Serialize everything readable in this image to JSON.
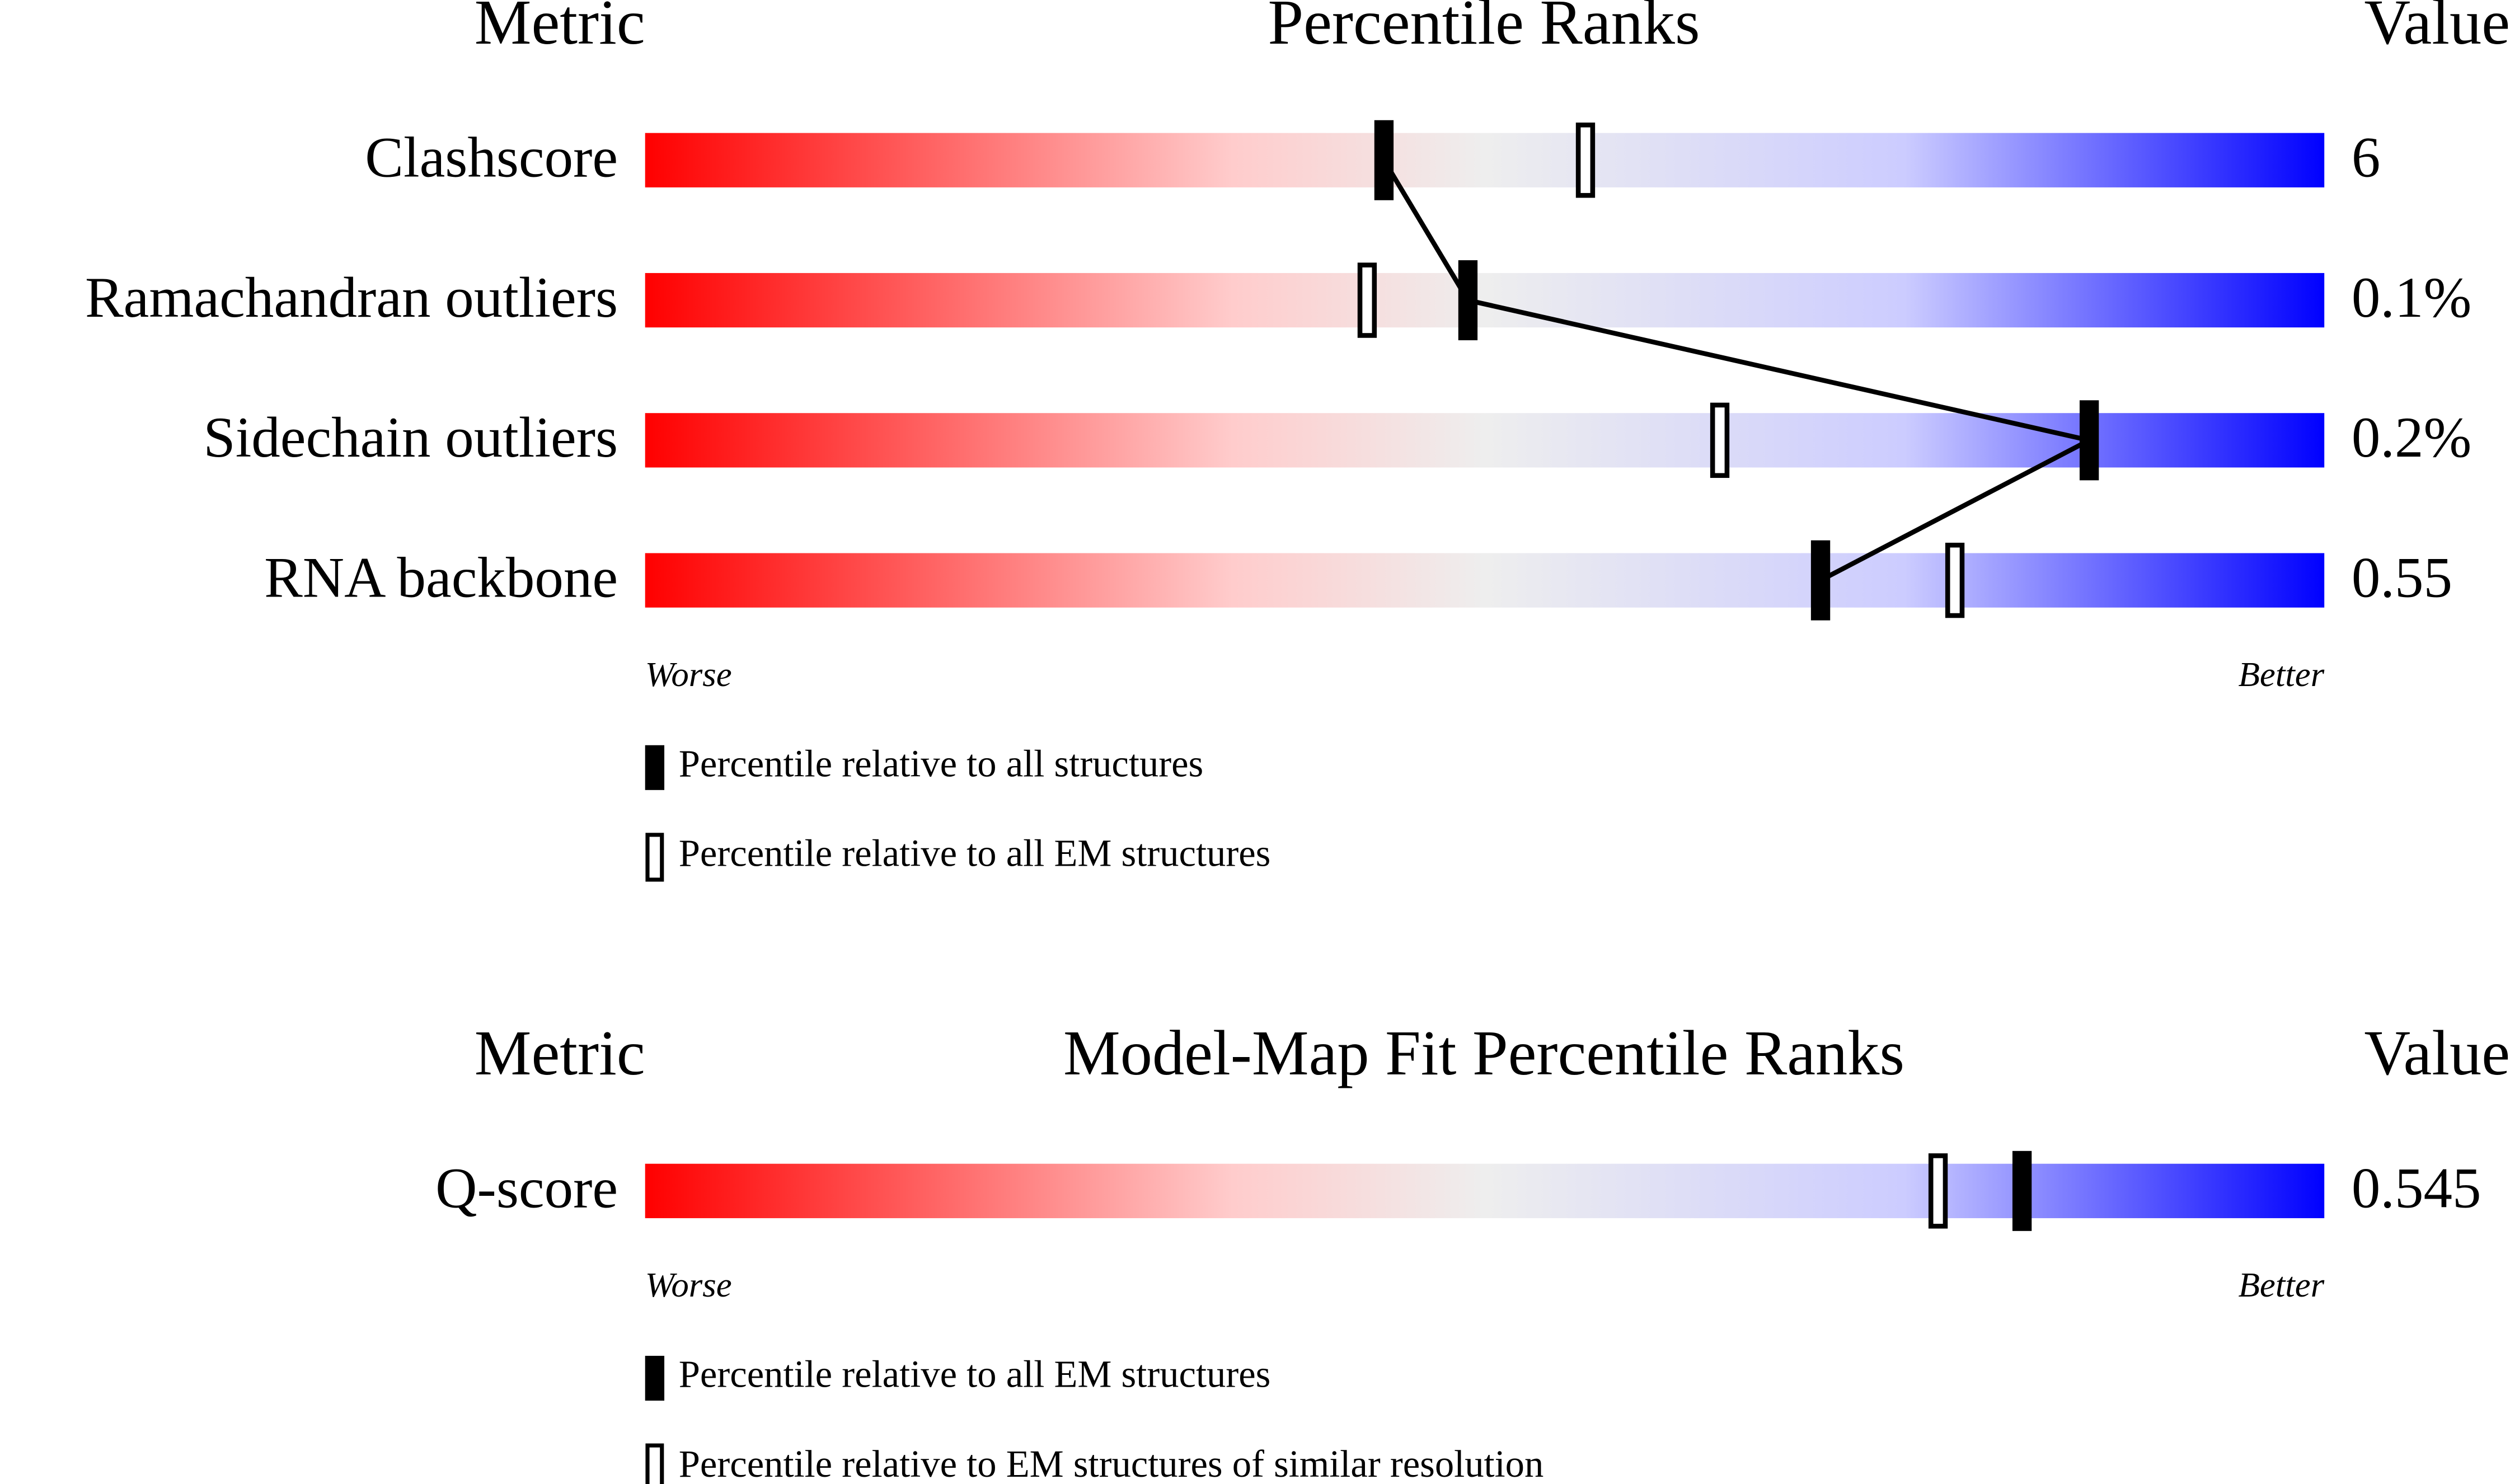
{
  "chart_data": [
    {
      "type": "percentile",
      "metric_header": "Metric",
      "title": "Percentile Ranks",
      "value_header": "Value",
      "categories": [
        "Clashscore",
        "Ramachandran outliers",
        "Sidechain outliers",
        "RNA backbone"
      ],
      "metric_values": [
        "6",
        "0.1%",
        "0.2%",
        "0.55"
      ],
      "series": [
        {
          "name": "Percentile relative to all structures",
          "style": "filled",
          "color": "#000000",
          "values": [
            44,
            49,
            86,
            70
          ]
        },
        {
          "name": "Percentile relative to all EM structures",
          "style": "open",
          "color": "#000000",
          "values": [
            56,
            43,
            64,
            78
          ]
        }
      ],
      "xlim": [
        0,
        100
      ],
      "low_label": "Worse",
      "high_label": "Better",
      "connect_first_series": true
    },
    {
      "type": "percentile",
      "metric_header": "Metric",
      "title": "Model-Map Fit Percentile Ranks",
      "value_header": "Value",
      "categories": [
        "Q-score"
      ],
      "metric_values": [
        "0.545"
      ],
      "series": [
        {
          "name": "Percentile relative to all EM structures",
          "style": "filled",
          "color": "#000000",
          "values": [
            82
          ]
        },
        {
          "name": "Percentile relative to EM structures of similar resolution",
          "style": "open",
          "color": "#000000",
          "values": [
            77
          ]
        }
      ],
      "xlim": [
        0,
        100
      ],
      "low_label": "Worse",
      "high_label": "Better",
      "connect_first_series": false
    }
  ]
}
